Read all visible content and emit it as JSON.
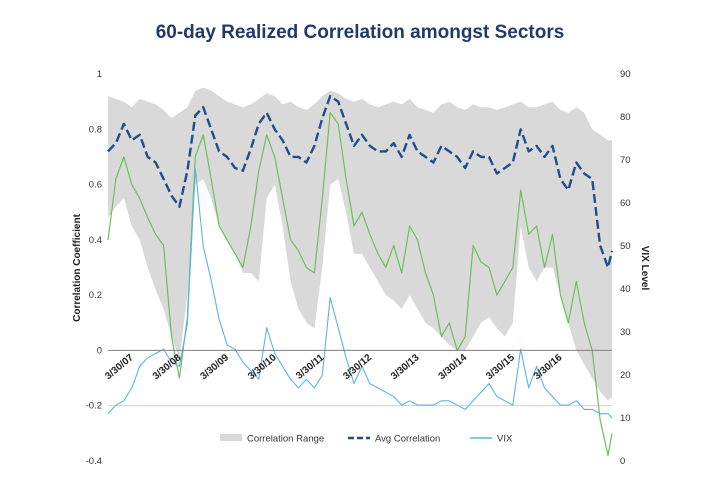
{
  "chart_data": {
    "type": "line",
    "title": "60-day Realized Correlation amongst Sectors",
    "ylabel": "Correlation Coefficient",
    "y2label": "VIX Level",
    "ylim": [
      -0.4,
      1
    ],
    "y2lim": [
      0,
      90
    ],
    "yticks": [
      "1",
      "0.8",
      "0.6",
      "0.4",
      "0.2",
      "0",
      "-0.2",
      "-0.4"
    ],
    "y2ticks": [
      "90",
      "80",
      "70",
      "60",
      "50",
      "40",
      "30",
      "20",
      "10",
      "0"
    ],
    "xticks": [
      "3/30/07",
      "3/30/08",
      "3/30/09",
      "3/30/10",
      "3/30/11",
      "3/30/12",
      "3/30/13",
      "3/30/14",
      "3/30/15",
      "3/30/16"
    ],
    "xrange": [
      "2007-01",
      "2017-08"
    ],
    "x": [
      "2007-01",
      "2007-03",
      "2007-05",
      "2007-07",
      "2007-09",
      "2007-11",
      "2008-01",
      "2008-03",
      "2008-05",
      "2008-07",
      "2008-09",
      "2008-11",
      "2009-01",
      "2009-03",
      "2009-05",
      "2009-07",
      "2009-09",
      "2009-11",
      "2010-01",
      "2010-03",
      "2010-05",
      "2010-07",
      "2010-09",
      "2010-11",
      "2011-01",
      "2011-03",
      "2011-05",
      "2011-07",
      "2011-09",
      "2011-11",
      "2012-01",
      "2012-03",
      "2012-05",
      "2012-07",
      "2012-09",
      "2012-11",
      "2013-01",
      "2013-03",
      "2013-05",
      "2013-07",
      "2013-09",
      "2013-11",
      "2014-01",
      "2014-03",
      "2014-05",
      "2014-07",
      "2014-09",
      "2014-11",
      "2015-01",
      "2015-03",
      "2015-05",
      "2015-07",
      "2015-09",
      "2015-11",
      "2016-01",
      "2016-03",
      "2016-05",
      "2016-07",
      "2016-09",
      "2016-11",
      "2017-01",
      "2017-03",
      "2017-05",
      "2017-07",
      "2017-08"
    ],
    "series": [
      {
        "name": "Correlation Range",
        "axis": "left",
        "color": "#d9d9d9",
        "upper": [
          0.92,
          0.91,
          0.9,
          0.88,
          0.91,
          0.9,
          0.89,
          0.87,
          0.84,
          0.86,
          0.88,
          0.94,
          0.95,
          0.94,
          0.92,
          0.9,
          0.89,
          0.88,
          0.89,
          0.91,
          0.93,
          0.92,
          0.89,
          0.9,
          0.88,
          0.87,
          0.89,
          0.92,
          0.94,
          0.93,
          0.91,
          0.9,
          0.91,
          0.89,
          0.88,
          0.89,
          0.9,
          0.89,
          0.91,
          0.88,
          0.87,
          0.86,
          0.89,
          0.9,
          0.88,
          0.87,
          0.89,
          0.88,
          0.88,
          0.87,
          0.88,
          0.89,
          0.9,
          0.88,
          0.88,
          0.89,
          0.9,
          0.87,
          0.86,
          0.88,
          0.86,
          0.8,
          0.78,
          0.76,
          0.76
        ],
        "lower": [
          0.48,
          0.52,
          0.55,
          0.45,
          0.4,
          0.3,
          0.22,
          0.15,
          0.05,
          -0.03,
          0.2,
          0.6,
          0.62,
          0.55,
          0.45,
          0.4,
          0.35,
          0.28,
          0.28,
          0.25,
          0.55,
          0.6,
          0.45,
          0.25,
          0.15,
          0.1,
          0.08,
          0.3,
          0.6,
          0.62,
          0.5,
          0.35,
          0.35,
          0.3,
          0.25,
          0.2,
          0.18,
          0.15,
          0.2,
          0.15,
          0.1,
          0.08,
          0.05,
          0.02,
          0.0,
          0.0,
          0.05,
          0.1,
          0.12,
          0.08,
          0.05,
          0.1,
          0.45,
          0.3,
          0.25,
          0.3,
          0.3,
          0.2,
          0.1,
          0.0,
          -0.05,
          -0.1,
          -0.15,
          -0.18,
          -0.17
        ]
      },
      {
        "name": "Avg Correlation",
        "axis": "left",
        "color": "#1f4e8c",
        "values": [
          0.72,
          0.75,
          0.82,
          0.76,
          0.78,
          0.7,
          0.68,
          0.62,
          0.56,
          0.52,
          0.65,
          0.85,
          0.88,
          0.8,
          0.72,
          0.7,
          0.66,
          0.65,
          0.73,
          0.82,
          0.86,
          0.8,
          0.76,
          0.7,
          0.7,
          0.68,
          0.74,
          0.84,
          0.92,
          0.9,
          0.82,
          0.74,
          0.78,
          0.74,
          0.72,
          0.72,
          0.75,
          0.7,
          0.78,
          0.72,
          0.7,
          0.68,
          0.74,
          0.72,
          0.7,
          0.66,
          0.72,
          0.7,
          0.7,
          0.64,
          0.66,
          0.68,
          0.8,
          0.72,
          0.74,
          0.7,
          0.74,
          0.62,
          0.58,
          0.68,
          0.64,
          0.62,
          0.38,
          0.3,
          0.36
        ]
      },
      {
        "name": "",
        "axis": "left",
        "color": "#6cbf5a",
        "values": [
          0.4,
          0.62,
          0.7,
          0.6,
          0.55,
          0.48,
          0.42,
          0.38,
          0.05,
          -0.1,
          0.12,
          0.7,
          0.78,
          0.62,
          0.45,
          0.4,
          0.35,
          0.3,
          0.45,
          0.65,
          0.78,
          0.7,
          0.55,
          0.4,
          0.36,
          0.3,
          0.28,
          0.55,
          0.86,
          0.82,
          0.62,
          0.45,
          0.5,
          0.42,
          0.35,
          0.3,
          0.38,
          0.28,
          0.45,
          0.4,
          0.28,
          0.2,
          0.05,
          0.1,
          0.0,
          0.05,
          0.38,
          0.32,
          0.3,
          0.2,
          0.25,
          0.3,
          0.58,
          0.42,
          0.45,
          0.3,
          0.42,
          0.2,
          0.1,
          0.25,
          0.1,
          0.0,
          -0.25,
          -0.38,
          -0.3
        ]
      },
      {
        "name": "VIX",
        "axis": "right",
        "color": "#5bb4e4",
        "values": [
          11,
          13,
          14,
          17,
          22,
          24,
          25,
          26,
          23,
          22,
          32,
          68,
          50,
          42,
          33,
          27,
          26,
          23,
          21,
          19,
          31,
          25,
          22,
          19,
          17,
          19,
          17,
          20,
          38,
          31,
          24,
          18,
          22,
          18,
          17,
          16,
          15,
          13,
          14,
          13,
          13,
          13,
          14,
          14,
          13,
          12,
          14,
          16,
          18,
          15,
          14,
          13,
          26,
          17,
          22,
          17,
          15,
          13,
          13,
          14,
          12,
          12,
          11,
          11,
          10
        ]
      }
    ],
    "legend": [
      {
        "label": "Correlation Range",
        "style": "band",
        "color": "#d9d9d9"
      },
      {
        "label": "Avg Correlation",
        "style": "dash",
        "color": "#1f4e8c"
      },
      {
        "label": "VIX",
        "style": "line",
        "color": "#5bb4e4"
      }
    ],
    "legend_position": "bottom",
    "grid": false
  }
}
